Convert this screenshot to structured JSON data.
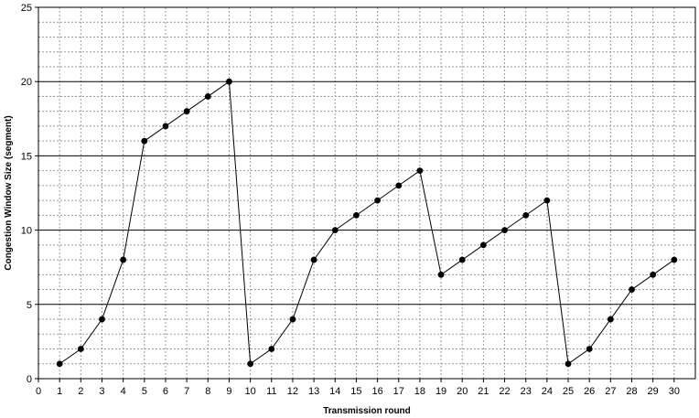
{
  "chart_data": {
    "type": "line",
    "xlabel": "Transmission round",
    "ylabel": "Congestion Window Size (segment)",
    "xlim": [
      0,
      31
    ],
    "ylim": [
      0,
      25
    ],
    "x_ticks": [
      "0",
      "1",
      "2",
      "3",
      "4",
      "5",
      "6",
      "7",
      "8",
      "9",
      "10",
      "11",
      "12",
      "13",
      "14",
      "15",
      "16",
      "17",
      "18",
      "19",
      "20",
      "21",
      "22",
      "23",
      "24",
      "25",
      "26",
      "27",
      "28",
      "29",
      "30"
    ],
    "y_ticks": [
      "0",
      "5",
      "10",
      "15",
      "20",
      "25"
    ],
    "grid": true,
    "series": [
      {
        "x": [
          1,
          2,
          3,
          4,
          5,
          6,
          7,
          8,
          9,
          10,
          11,
          12,
          13,
          14,
          15,
          16,
          17,
          18,
          19,
          20,
          21,
          22,
          23,
          24,
          25,
          26,
          27,
          28,
          29,
          30
        ],
        "values": [
          1,
          2,
          4,
          8,
          16,
          17,
          18,
          19,
          20,
          1,
          2,
          4,
          8,
          10,
          11,
          12,
          13,
          14,
          7,
          8,
          9,
          10,
          11,
          12,
          1,
          2,
          4,
          6,
          7,
          8
        ],
        "color": "#000000"
      }
    ]
  }
}
